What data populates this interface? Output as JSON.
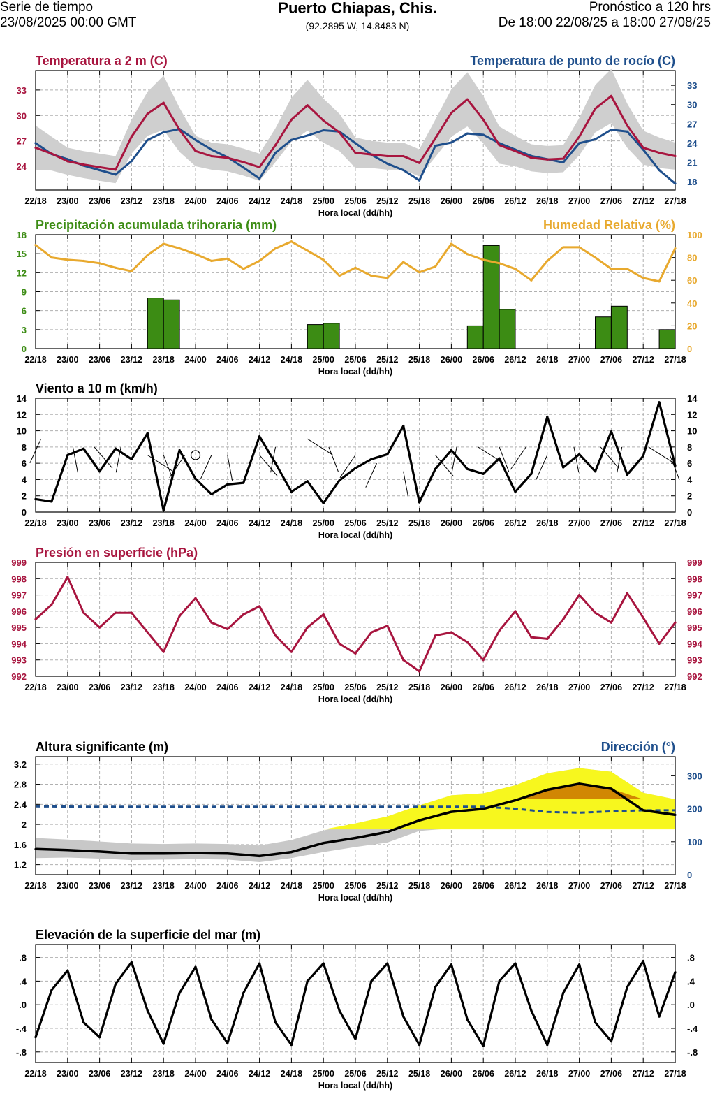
{
  "header": {
    "series_label": "Serie de tiempo",
    "run_time": "23/08/2025 00:00 GMT",
    "location": "Puerto Chiapas, Chis.",
    "coords": "(92.2895 W, 14.8483 N)",
    "forecast_label": "Pronóstico a 120 hrs",
    "forecast_range": "De 18:00 22/08/25 a 18:00 27/08/25"
  },
  "colors": {
    "temperature": "#a8153f",
    "dewpoint": "#1f4f8c",
    "precip": "#3c8c14",
    "humidity": "#e8a92e",
    "wind": "#000000",
    "pressure": "#a8153f",
    "wave_dir": "#1f4f8c",
    "wave_band": "#c8c8c8",
    "orange": "#cc7a00",
    "yellow": "#ffff00"
  },
  "time_ticks": [
    "22/18",
    "23/00",
    "23/06",
    "23/12",
    "23/18",
    "24/00",
    "24/06",
    "24/12",
    "24/18",
    "25/00",
    "25/06",
    "25/12",
    "25/18",
    "26/00",
    "26/06",
    "26/12",
    "26/18",
    "27/00",
    "27/06",
    "27/12",
    "27/18"
  ],
  "x_axis_label": "Hora local (dd/hh)",
  "chart_data": [
    {
      "id": "temp",
      "type": "line",
      "title_left": "Temperatura a 2 m (C)",
      "title_right": "Temperatura de punto de rocío (C)",
      "xlabel": "Hora local (dd/hh)",
      "ylim_left": [
        21.2,
        35.3
      ],
      "yticks_left": [
        24,
        27,
        30,
        33
      ],
      "ylim_right": [
        16.7,
        35.3
      ],
      "yticks_right": [
        18,
        21,
        24,
        27,
        30,
        33
      ],
      "series": [
        {
          "name": "Temperatura a 2 m (C)",
          "axis": "left",
          "x": [
            0,
            3,
            6,
            9,
            12,
            15,
            18,
            21,
            24,
            27,
            30,
            33,
            36,
            39,
            42,
            45,
            48,
            51,
            54,
            57,
            60,
            63,
            66,
            69,
            72,
            75,
            78,
            81,
            84,
            87,
            90,
            93,
            96,
            99,
            102,
            105,
            108,
            111,
            114,
            117,
            120
          ],
          "values": [
            26.2,
            25.5,
            24.6,
            24.2,
            23.9,
            23.6,
            27.5,
            30.2,
            31.5,
            28.3,
            25.8,
            25.2,
            25.0,
            24.5,
            23.9,
            26.5,
            29.5,
            31.2,
            29.4,
            28.0,
            25.6,
            25.4,
            25.2,
            25.2,
            24.4,
            27.3,
            30.3,
            31.9,
            29.5,
            26.5,
            25.8,
            25.0,
            24.8,
            24.9,
            27.5,
            30.8,
            32.3,
            28.8,
            26.2,
            25.6,
            25.2
          ],
          "band": [
            2.6,
            2.0,
            1.6,
            1.6,
            1.6,
            1.6,
            2.0,
            2.6,
            3.2,
            2.6,
            1.8,
            1.6,
            1.6,
            1.6,
            1.6,
            2.0,
            2.6,
            3.0,
            2.6,
            2.2,
            1.8,
            1.6,
            1.6,
            1.6,
            1.6,
            2.2,
            2.8,
            3.2,
            2.8,
            2.2,
            1.8,
            1.6,
            1.6,
            1.6,
            2.2,
            2.8,
            3.2,
            2.6,
            2.0,
            1.8,
            1.6
          ]
        },
        {
          "name": "Temperatura de punto de rocío (C)",
          "axis": "right",
          "x": [
            0,
            3,
            6,
            9,
            12,
            15,
            18,
            21,
            24,
            27,
            30,
            33,
            36,
            39,
            42,
            45,
            48,
            51,
            54,
            57,
            60,
            63,
            66,
            69,
            72,
            75,
            78,
            81,
            84,
            87,
            90,
            93,
            96,
            99,
            102,
            105,
            108,
            111,
            114,
            117,
            120
          ],
          "values": [
            24.0,
            22.3,
            21.5,
            20.5,
            19.8,
            19.1,
            21.2,
            24.5,
            25.7,
            26.2,
            24.5,
            23.0,
            21.8,
            20.2,
            18.5,
            22.5,
            24.5,
            25.2,
            26.0,
            25.8,
            24.0,
            22.2,
            20.8,
            19.8,
            18.2,
            23.6,
            24.1,
            25.5,
            25.3,
            24.0,
            23.0,
            22.0,
            21.5,
            21.0,
            24.0,
            24.6,
            26.1,
            25.8,
            23.0,
            19.8,
            17.7
          ]
        }
      ]
    },
    {
      "id": "precip",
      "type": "bar",
      "title_left": "Precipitación acumulada trihoraria (mm)",
      "title_right": "Humedad Relativa (%)",
      "xlabel": "Hora local (dd/hh)",
      "ylim_left": [
        0,
        18
      ],
      "yticks_left": [
        0,
        3,
        6,
        9,
        12,
        15,
        18
      ],
      "ylim_right": [
        0,
        100
      ],
      "yticks_right": [
        0,
        20,
        40,
        60,
        80,
        100
      ],
      "bars": {
        "name": "Precipitación acumulada trihoraria (mm)",
        "x": [
          3,
          6,
          9,
          12,
          15,
          18,
          21,
          24,
          27,
          30,
          33,
          36,
          39,
          42,
          45,
          48,
          51,
          54,
          57,
          60,
          63,
          66,
          69,
          72,
          75,
          78,
          81,
          84,
          87,
          90,
          93,
          96,
          99,
          102,
          105,
          108,
          111,
          114,
          117,
          120
        ],
        "values": [
          0,
          0,
          0,
          0,
          0,
          0,
          0,
          8.0,
          7.7,
          0,
          0,
          0,
          0,
          0,
          0,
          0,
          0,
          3.8,
          4.0,
          0,
          0,
          0,
          0,
          0,
          0,
          0,
          0,
          3.6,
          16.3,
          6.2,
          0,
          0,
          0,
          0,
          0,
          5.0,
          6.7,
          0,
          0,
          3.0
        ]
      },
      "series": [
        {
          "name": "Humedad Relativa (%)",
          "axis": "right",
          "x": [
            0,
            3,
            6,
            9,
            12,
            15,
            18,
            21,
            24,
            27,
            30,
            33,
            36,
            39,
            42,
            45,
            48,
            51,
            54,
            57,
            60,
            63,
            66,
            69,
            72,
            75,
            78,
            81,
            84,
            87,
            90,
            93,
            96,
            99,
            102,
            105,
            108,
            111,
            114,
            117,
            120
          ],
          "values": [
            91,
            80,
            78,
            77,
            75,
            71,
            68,
            82,
            92,
            88,
            83,
            77,
            79,
            70,
            77,
            88,
            94,
            86,
            78,
            64,
            71,
            64,
            62,
            76,
            67,
            72,
            92,
            83,
            78,
            75,
            70,
            60,
            77,
            89,
            89,
            80,
            70,
            70,
            62,
            59,
            88
          ]
        }
      ]
    },
    {
      "id": "wind",
      "type": "line",
      "title_left": "Viento a 10 m (km/h)",
      "xlabel": "Hora local (dd/hh)",
      "ylim_left": [
        0,
        14
      ],
      "yticks_left": [
        0,
        2,
        4,
        6,
        8,
        10,
        12,
        14
      ],
      "ylim_right": [
        0,
        14
      ],
      "yticks_right": [
        0,
        2,
        4,
        6,
        8,
        10,
        12,
        14
      ],
      "series": [
        {
          "name": "Viento a 10 m (km/h)",
          "axis": "left",
          "x": [
            0,
            3,
            6,
            9,
            12,
            15,
            18,
            21,
            24,
            27,
            30,
            33,
            36,
            39,
            42,
            45,
            48,
            51,
            54,
            57,
            60,
            63,
            66,
            69,
            72,
            75,
            78,
            81,
            84,
            87,
            90,
            93,
            96,
            99,
            102,
            105,
            108,
            111,
            114,
            117,
            120
          ],
          "values": [
            1.6,
            1.3,
            7.0,
            7.8,
            5.0,
            7.8,
            6.5,
            9.7,
            0.2,
            7.6,
            4.1,
            2.2,
            3.4,
            3.6,
            9.3,
            6.0,
            2.5,
            3.8,
            1.1,
            3.9,
            5.4,
            6.5,
            7.1,
            10.6,
            1.2,
            5.3,
            7.6,
            5.3,
            4.7,
            6.6,
            2.5,
            4.7,
            11.7,
            5.5,
            7.1,
            5.0,
            9.9,
            4.6,
            6.9,
            13.5,
            5.7
          ]
        },
        {
          "name": "Viento a 10 m (km/h)",
          "axis": "left",
          "glyph": "barb",
          "x": [
            1,
            7,
            11,
            16,
            21,
            24,
            28,
            33,
            36,
            42,
            45,
            51,
            55,
            60,
            64,
            69,
            75,
            79,
            83,
            87,
            92,
            96,
            101,
            106,
            110,
            115,
            119
          ],
          "values": [
            9,
            8,
            8,
            8,
            7,
            7,
            7,
            7,
            7,
            7,
            8,
            9,
            8,
            7,
            6,
            5,
            7,
            8,
            8,
            8,
            8,
            7,
            8,
            8,
            8,
            8,
            7
          ]
        }
      ]
    },
    {
      "id": "pressure",
      "type": "line",
      "title_left": "Presión en superficie (hPa)",
      "xlabel": "Hora local (dd/hh)",
      "ylim_left": [
        992,
        999
      ],
      "yticks_left": [
        992,
        993,
        994,
        995,
        996,
        997,
        998,
        999
      ],
      "ylim_right": [
        992,
        999
      ],
      "yticks_right": [
        992,
        993,
        994,
        995,
        996,
        997,
        998,
        999
      ],
      "series": [
        {
          "name": "Presión en superficie (hPa)",
          "axis": "left",
          "x": [
            0,
            3,
            6,
            9,
            12,
            15,
            18,
            21,
            24,
            27,
            30,
            33,
            36,
            39,
            42,
            45,
            48,
            51,
            54,
            57,
            60,
            63,
            66,
            69,
            72,
            75,
            78,
            81,
            84,
            87,
            90,
            93,
            96,
            99,
            102,
            105,
            108,
            111,
            114,
            117,
            120
          ],
          "values": [
            995.5,
            996.4,
            998.1,
            995.9,
            995.0,
            995.9,
            995.9,
            994.7,
            993.5,
            995.7,
            996.8,
            995.3,
            994.9,
            995.8,
            996.3,
            994.5,
            993.5,
            995.0,
            995.8,
            994.0,
            993.4,
            994.7,
            995.1,
            993.0,
            992.3,
            994.5,
            994.7,
            994.1,
            993.0,
            994.8,
            996.0,
            994.4,
            994.3,
            995.5,
            997.0,
            995.9,
            995.3,
            997.1,
            995.6,
            994.0,
            995.3
          ]
        }
      ]
    },
    {
      "id": "waves",
      "type": "area",
      "title_left": "Altura significante (m)",
      "title_right": "Dirección (°)",
      "xlabel": "Hora local (dd/hh)",
      "ylim_left": [
        1.0,
        3.35
      ],
      "yticks_left": [
        1.2,
        1.6,
        2,
        2.4,
        2.8,
        3.2
      ],
      "ylim_right": [
        0,
        358
      ],
      "yticks_right": [
        0,
        100,
        200,
        300
      ],
      "series": [
        {
          "name": "Altura significante (m)",
          "axis": "left",
          "x": [
            0,
            6,
            12,
            18,
            24,
            30,
            36,
            42,
            48,
            54,
            60,
            66,
            72,
            78,
            84,
            90,
            96,
            102,
            108,
            114,
            120
          ],
          "values": [
            1.51,
            1.49,
            1.46,
            1.42,
            1.42,
            1.43,
            1.42,
            1.37,
            1.45,
            1.63,
            1.73,
            1.85,
            2.08,
            2.25,
            2.31,
            2.48,
            2.69,
            2.81,
            2.71,
            2.28,
            2.19
          ],
          "band_low": [
            1.33,
            1.34,
            1.32,
            1.29,
            1.3,
            1.31,
            1.3,
            1.25,
            1.33,
            1.45,
            1.55,
            1.64,
            1.87,
            1.92,
            1.92,
            1.92,
            1.92,
            1.92,
            1.92,
            1.92,
            1.92
          ],
          "band_high": [
            1.73,
            1.7,
            1.66,
            1.62,
            1.61,
            1.62,
            1.61,
            1.58,
            1.69,
            1.88,
            2.02,
            2.16,
            2.38,
            2.58,
            2.62,
            2.78,
            3.02,
            3.12,
            3.05,
            2.63,
            2.5
          ]
        },
        {
          "name": "Dirección (°)",
          "axis": "right",
          "style": "dashed",
          "x": [
            0,
            12,
            24,
            36,
            48,
            60,
            72,
            84,
            90,
            96,
            102,
            108,
            114,
            120
          ],
          "values": [
            207,
            206,
            206,
            206,
            206,
            206,
            206,
            206,
            200,
            190,
            188,
            192,
            195,
            195
          ]
        }
      ],
      "thresholds": [
        {
          "color": "yellow",
          "value": 1.9
        },
        {
          "color": "orange",
          "value": 2.5
        }
      ]
    },
    {
      "id": "sea",
      "type": "line",
      "title_left": "Elevación de la superficie del mar (m)",
      "xlabel": "Hora local (dd/hh)",
      "ylim_left": [
        -0.98,
        1.02
      ],
      "yticks_left": [
        ".8",
        ".4",
        ".0",
        "-.4",
        "-.8"
      ],
      "ylim_right": [
        -0.98,
        1.02
      ],
      "yticks_right": [
        ".8",
        ".4",
        ".0",
        "-.4",
        "-.8"
      ],
      "series": [
        {
          "name": "Elevación de la superficie del mar (m)",
          "axis": "left",
          "x": [
            0,
            3,
            6,
            9,
            12,
            15,
            18,
            21,
            24,
            27,
            30,
            33,
            36,
            39,
            42,
            45,
            48,
            51,
            54,
            57,
            60,
            63,
            66,
            69,
            72,
            75,
            78,
            81,
            84,
            87,
            90,
            93,
            96,
            99,
            102,
            105,
            108,
            111,
            114,
            117,
            120
          ],
          "values": [
            -0.55,
            0.25,
            0.58,
            -0.3,
            -0.55,
            0.35,
            0.72,
            -0.1,
            -0.66,
            0.2,
            0.64,
            -0.25,
            -0.65,
            0.2,
            0.7,
            -0.3,
            -0.68,
            0.4,
            0.7,
            -0.1,
            -0.58,
            0.4,
            0.7,
            -0.2,
            -0.68,
            0.3,
            0.68,
            -0.25,
            -0.7,
            0.4,
            0.7,
            -0.1,
            -0.68,
            0.2,
            0.68,
            -0.3,
            -0.62,
            0.3,
            0.74,
            -0.2,
            0.55
          ]
        }
      ]
    }
  ]
}
